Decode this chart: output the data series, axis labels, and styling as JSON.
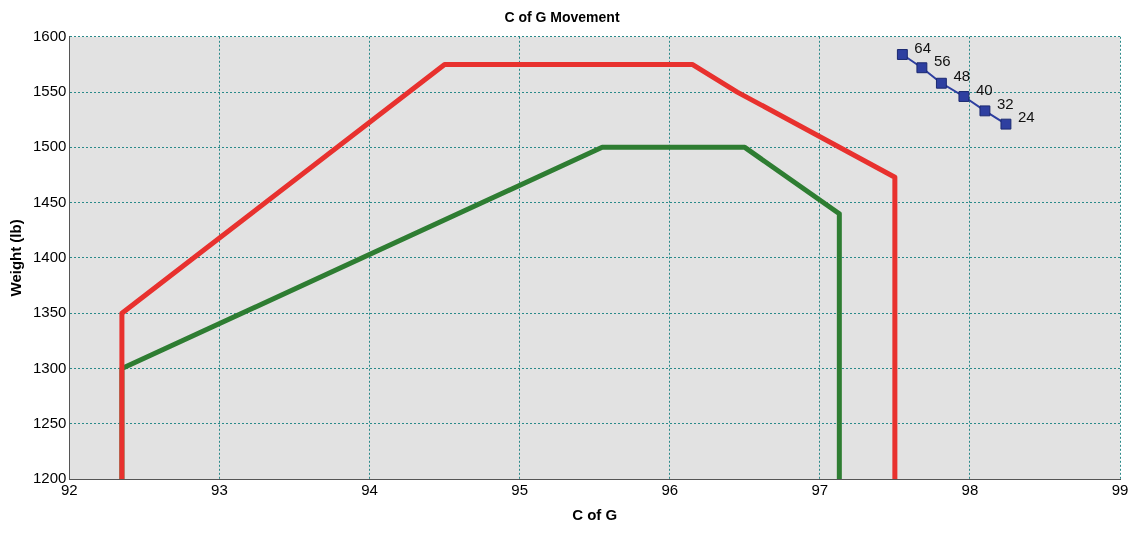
{
  "chart_data": {
    "type": "line",
    "title": "C of G Movement",
    "xlabel": "C of G",
    "ylabel": "Weight (lb)",
    "xlim": [
      92,
      99
    ],
    "xticks": [
      92,
      93,
      94,
      95,
      96,
      97,
      98,
      99
    ],
    "ylim": [
      1200,
      1600
    ],
    "yticks": [
      1200,
      1250,
      1300,
      1350,
      1400,
      1450,
      1500,
      1550,
      1600
    ],
    "grid": true,
    "line_style": "solid",
    "marker": "none",
    "series": [
      {
        "color": "#e8312e",
        "x": [
          92.35,
          92.35,
          94.5,
          96.15,
          96.45,
          97.5,
          97.5
        ],
        "values": [
          1200,
          1350,
          1575,
          1575,
          1550,
          1473,
          1200
        ]
      },
      {
        "color": "#2e7d32",
        "x": [
          92.35,
          92.35,
          95.55,
          96.5,
          97.13,
          97.13
        ],
        "values": [
          1200,
          1300,
          1500,
          1500,
          1440,
          1200
        ]
      },
      {
        "color": "#2e3fa0",
        "marker": "square",
        "x": [
          97.55,
          97.68,
          97.81,
          97.96,
          98.1,
          98.24
        ],
        "values": [
          1584,
          1572,
          1558,
          1546,
          1533,
          1521
        ]
      }
    ],
    "annotations": [
      {
        "text": "64",
        "x": 97.55,
        "y": 1584
      },
      {
        "text": "56",
        "x": 97.68,
        "y": 1572
      },
      {
        "text": "48",
        "x": 97.81,
        "y": 1558
      },
      {
        "text": "40",
        "x": 97.96,
        "y": 1546
      },
      {
        "text": "32",
        "x": 98.1,
        "y": 1533
      },
      {
        "text": "24",
        "x": 98.24,
        "y": 1521
      }
    ]
  }
}
